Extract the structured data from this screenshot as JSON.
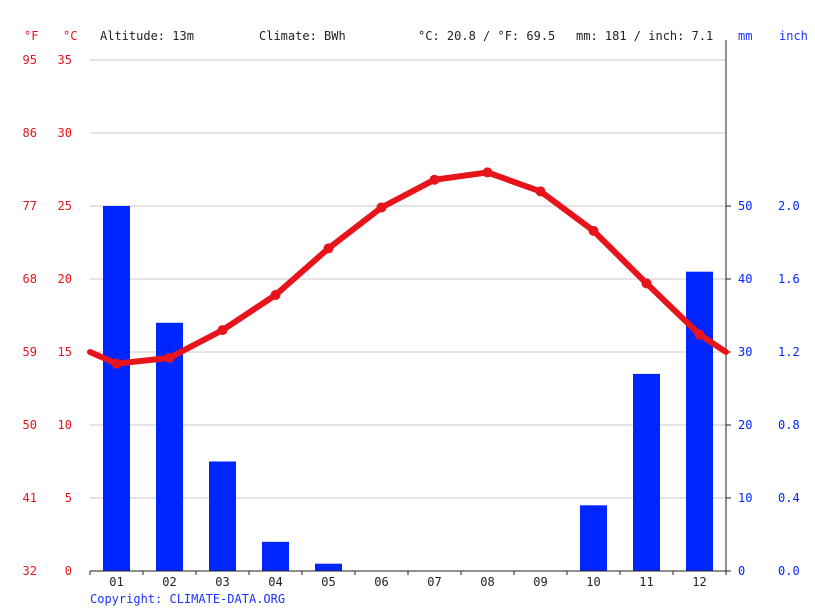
{
  "header": {
    "unit_f": "°F",
    "unit_c": "°C",
    "altitude": "Altitude: 13m",
    "climate": "Climate: BWh",
    "avg_temp": "°C: 20.8 / °F: 69.5",
    "precip": "mm: 181 / inch: 7.1",
    "unit_mm": "mm",
    "unit_inch": "inch"
  },
  "copyright": "Copyright: CLIMATE-DATA.ORG",
  "colors": {
    "temperature": "#e8141b",
    "precipitation": "#0026ff",
    "grid": "#c8c8c8",
    "axis": "#222222"
  },
  "chart_data": {
    "type": "bar+line",
    "categories": [
      "01",
      "02",
      "03",
      "04",
      "05",
      "06",
      "07",
      "08",
      "09",
      "10",
      "11",
      "12"
    ],
    "series": [
      {
        "type": "bar",
        "axis": "right",
        "values": [
          50,
          34,
          15,
          4,
          1,
          0,
          0,
          0,
          0,
          9,
          27,
          41
        ]
      },
      {
        "type": "line",
        "axis": "left",
        "values": [
          14.2,
          14.6,
          16.5,
          18.9,
          22.1,
          24.9,
          26.8,
          27.3,
          26.0,
          23.3,
          19.7,
          16.2
        ]
      }
    ],
    "temp_edges": {
      "left": 15.0,
      "right": 15.0
    },
    "y_left_c": {
      "range": [
        0,
        35
      ],
      "ticks": [
        "0",
        "5",
        "10",
        "15",
        "20",
        "25",
        "30",
        "35"
      ]
    },
    "y_left_f": {
      "ticks": [
        "32",
        "41",
        "50",
        "59",
        "68",
        "77",
        "86",
        "95"
      ]
    },
    "y_right_mm": {
      "range": [
        0,
        70
      ],
      "ticks": [
        "0",
        "10",
        "20",
        "30",
        "40",
        "50"
      ]
    },
    "y_right_inch": {
      "ticks": [
        "0.0",
        "0.4",
        "0.8",
        "1.2",
        "1.6",
        "2.0"
      ]
    },
    "grid": true
  }
}
